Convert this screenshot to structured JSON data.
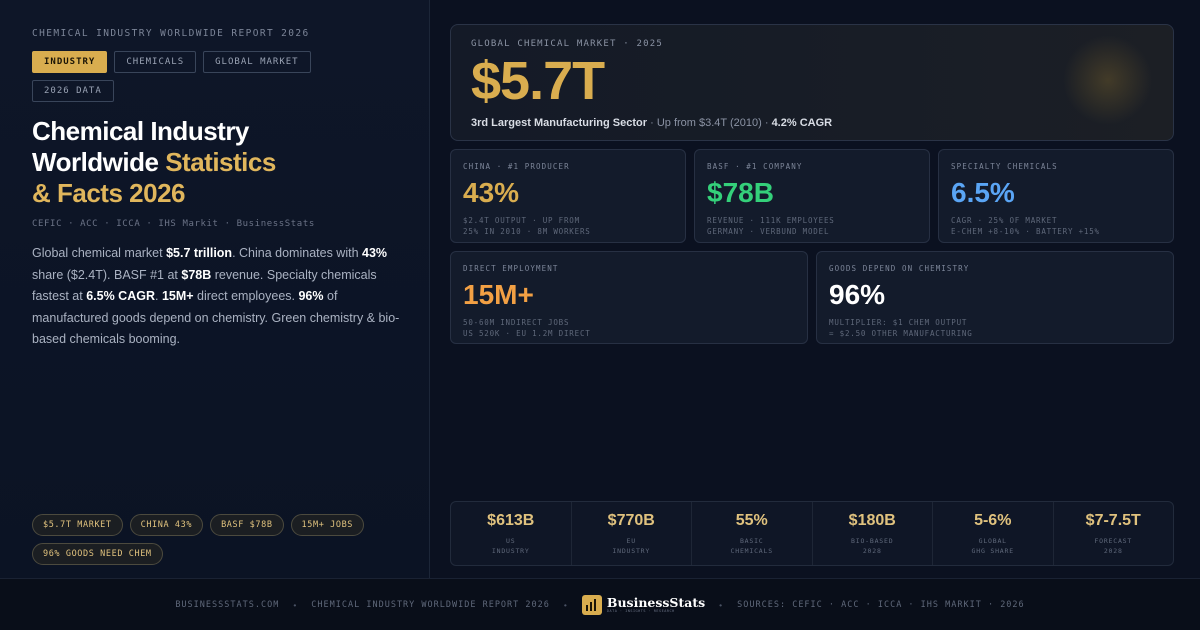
{
  "left": {
    "kicker": "CHEMICAL INDUSTRY WORLDWIDE REPORT 2026",
    "tags": [
      "INDUSTRY",
      "CHEMICALS",
      "GLOBAL MARKET",
      "2026 DATA"
    ],
    "headline": {
      "line1": "Chemical Industry",
      "line2_white": "Worldwide ",
      "line2_gold": "Statistics",
      "line3_gold": "& Facts 2026"
    },
    "sources": "CEFIC · ACC · ICCA · IHS Markit · BusinessStats",
    "summary": {
      "p1": "Global chemical market ",
      "b1": "$5.7 trillion",
      "p2": ". China dominates with ",
      "b2": "43%",
      "p3": " share ($2.4T). BASF #1 at ",
      "b3": "$78B",
      "p4": " revenue. Specialty chemicals fastest at ",
      "b4": "6.5% CAGR",
      "p5": ". ",
      "b5": "15M+",
      "p6": " direct employees. ",
      "b6": "96%",
      "p7": " of manufactured goods depend on chemistry. Green chemistry & bio-based chemicals booming."
    },
    "pills": [
      "$5.7T MARKET",
      "CHINA 43%",
      "BASF $78B",
      "15M+ JOBS",
      "96% GOODS NEED CHEM"
    ]
  },
  "hero": {
    "label": "GLOBAL CHEMICAL MARKET · 2025",
    "value": "$5.7T",
    "sub_bold1": "3rd Largest Manufacturing Sector",
    "sub_mid": " · Up from $3.4T (2010) · ",
    "sub_bold2": "4.2% CAGR"
  },
  "cards": [
    {
      "label": "CHINA · #1 PRODUCER",
      "value": "43%",
      "color": "#d9ad4f",
      "meta1": "$2.4T OUTPUT · UP FROM",
      "meta2": "25% IN 2010 · 8M WORKERS"
    },
    {
      "label": "BASF · #1 COMPANY",
      "value": "$78B",
      "color": "#34d07a",
      "meta1": "REVENUE · 111K EMPLOYEES",
      "meta2": "GERMANY · VERBUND MODEL"
    },
    {
      "label": "SPECIALTY CHEMICALS",
      "value": "6.5%",
      "color": "#5aa5f5",
      "meta1": "CAGR · 25% OF MARKET",
      "meta2": "E-CHEM +8-10% · BATTERY +15%"
    },
    {
      "label": "DIRECT EMPLOYMENT",
      "value": "15M+",
      "color": "#f2a044",
      "meta1": "50-60M INDIRECT JOBS",
      "meta2": "US 520K · EU 1.2M DIRECT"
    },
    {
      "label": "GOODS DEPEND ON CHEMISTRY",
      "value": "96%",
      "color": "#ffffff",
      "meta1": "MULTIPLIER: $1 CHEM OUTPUT",
      "meta2": "= $2.50 OTHER MANUFACTURING"
    }
  ],
  "stats": [
    {
      "value": "$613B",
      "l1": "US",
      "l2": "INDUSTRY"
    },
    {
      "value": "$770B",
      "l1": "EU",
      "l2": "INDUSTRY"
    },
    {
      "value": "55%",
      "l1": "BASIC",
      "l2": "CHEMICALS"
    },
    {
      "value": "$180B",
      "l1": "BIO-BASED",
      "l2": "2028"
    },
    {
      "value": "5-6%",
      "l1": "GLOBAL",
      "l2": "GHG SHARE"
    },
    {
      "value": "$7-7.5T",
      "l1": "FORECAST",
      "l2": "2028"
    }
  ],
  "footer": {
    "site": "BUSINESSSTATS.COM",
    "report": "CHEMICAL INDUSTRY WORLDWIDE REPORT 2026",
    "brand": "BusinessStats",
    "brand_tag": "DATA · INSIGHTS · RESEARCH",
    "sources": "SOURCES: CEFIC · ACC · ICCA · IHS MARKIT · 2026"
  }
}
